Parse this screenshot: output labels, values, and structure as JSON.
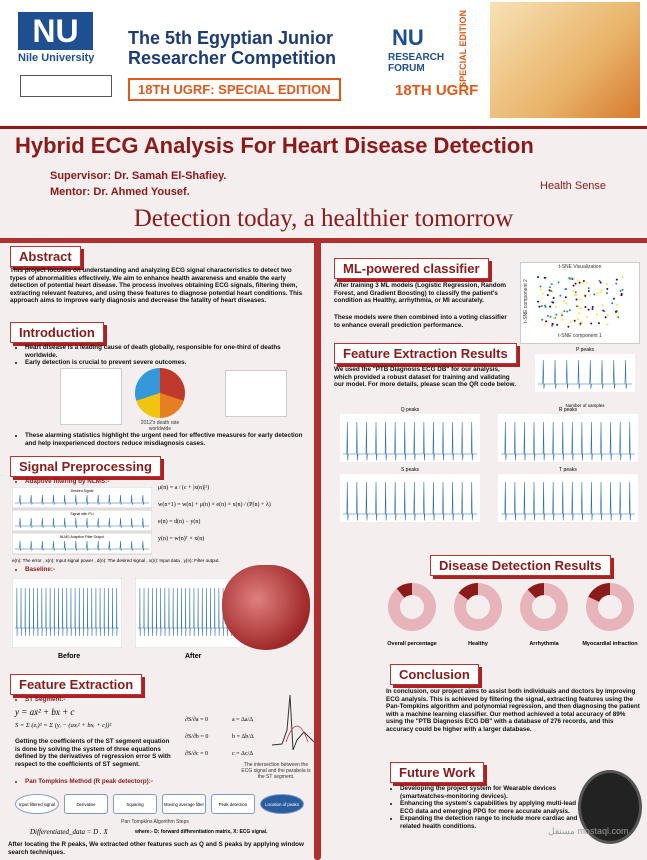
{
  "header": {
    "university": "Nile University",
    "comp_line1": "The 5th Egyptian Junior",
    "comp_line2": "Researcher Competition",
    "edition": "18TH UGRF: SPECIAL EDITION",
    "forum_nu": "NU",
    "forum_name": "RESEARCH FORUM",
    "forum_special": "SPECIAL EDITION",
    "forum_ugrf": "18TH UGRF"
  },
  "title": "Hybrid ECG Analysis For Heart Disease Detection",
  "supervisor": "Supervisor: Dr. Samah El-Shafiey.",
  "mentor": "Mentor: Dr. Ahmed Yousef.",
  "brand": "Health Sense",
  "tagline": "Detection today, a healthier tomorrow",
  "abstract": {
    "heading": "Abstract",
    "text": "This project focuses on understanding and analyzing ECG signal characteristics to detect two types of abnormalities effectively. We aim to enhance health awareness and enable the early detection of potential heart disease. The process involves obtaining ECG signals, filtering them, extracting relevant features, and using these features to diagnose potential heart conditions. This approach aims to improve early diagnosis and decrease the fatality of heart diseases."
  },
  "introduction": {
    "heading": "Introduction",
    "bullets": [
      "Heart disease is a leading cause of death globally, responsible for one-third of deaths worldwide.",
      "Early detection is crucial to prevent severe outcomes."
    ],
    "caption": "2012's death rate worldwide",
    "bullet_after": "These alarming statistics highlight the urgent need for effective measures for early detection and help inexperienced doctors reduce misdiagnosis cases."
  },
  "signal_preprocessing": {
    "heading": "Signal Preprocessing",
    "adaptive": "Adaptive filtering by NLMS:-",
    "plot_titles": [
      "Desired Signal",
      "Signal with PLI",
      "NLMS Adaptive Filter Output"
    ],
    "formulas": [
      "μ(n) = a / (c + |x(n)|²)",
      "w(n+1) = w(n) + μ(n) × e(n) × x(n) / (P(n) + λ)",
      "e(n) = d(n) − y(n)",
      "y(n) = w(n)ᵀ × x(n)"
    ],
    "legend": "e(n): The error , x(n): Input signal power , d(n): The desired signal , x(n): Input data , y(n): Filter output.",
    "baseline": "Baseline:-",
    "before": "Before",
    "after": "After"
  },
  "feature_extraction": {
    "heading": "Feature Extraction",
    "st": "ST Segment:-",
    "eq1": "y = ax² + bx + c",
    "eq2": "S = Σ (eᵢ)² = Σ (yᵢ − (axᵢ² + bxᵢ + c))²",
    "derivs": [
      "∂S/∂a = 0",
      "∂S/∂b = 0",
      "∂S/∂c = 0"
    ],
    "solutions": [
      "a = Δa/Δ",
      "b = Δb/Δ",
      "c = Δc/Δ"
    ],
    "text": "Getting the coefficients of the ST segment equation is done by solving the system of three equations defined by the derivatives of regression error S with respect to the coefficients of ST segment.",
    "caption": "The intersection between the ECG signal and the parabola is the ST segment.",
    "pan": "Pan Tompkins Method (R peak detectorp):-",
    "steps": [
      "Input filtered signal",
      "Derivative",
      "Squaring",
      "Moving average filter",
      "Peak detection",
      "Location of peaks"
    ],
    "steps_caption": "Pan Tompkins Algorithm Steps",
    "diff": "Differentiated_data = D . X",
    "where": "where:- D: forward differentiation matrix, X: ECG signal.",
    "after": "After locating the R peaks, We extracted other features such as Q and S peaks by applying window search techniques."
  },
  "ml": {
    "heading": "ML-powered classifier",
    "text1": "After training 3 ML models (Logistic Regression, Random Forest, and Gradient Boosting) to classify the patient's condition as Healthy, arrhythmia, or MI accurately.",
    "text2": "These models were then combined into a voting classifier to enhance overall prediction performance.",
    "plot_title": "t-SNE Visualization",
    "xlabel": "t-SNE component 1",
    "ylabel": "t-SNE component 2"
  },
  "results": {
    "heading": "Feature Extraction Results",
    "text": "We used the \"PTB Diagnosis ECG DB\" for our analysis, which provided a robust dataset for training and validating our model. For more details, please scan the QR code below.",
    "plots": [
      "P peaks",
      "Q peaks",
      "R peaks",
      "S peaks",
      "T peaks"
    ],
    "xlabel": "Number of samples"
  },
  "disease": {
    "heading": "Disease Detection Results",
    "charts": [
      {
        "name": "Overall percentage",
        "values": [
          89,
          11
        ]
      },
      {
        "name": "Healthy",
        "values": [
          85,
          15
        ]
      },
      {
        "name": "Arrhythmia",
        "values": [
          88,
          12
        ]
      },
      {
        "name": "Myocardial infraction",
        "values": [
          82,
          18
        ]
      }
    ]
  },
  "conclusion": {
    "heading": "Conclusion",
    "text": "In conclusion, our project aims to assist both individuals and doctors by improving ECG analysis. This is achieved by filtering the signal, extracting features using the Pan-Tompkins algorithm and polynomial regression, and then diagnosing the patient with a machine learning classifier. Our method achieved a total accuracy of 89% using the \"PTB Diagnosis ECG DB\" with a database of 276 records, and this accuracy could be higher with a larger database."
  },
  "future": {
    "heading": "Future Work",
    "bullets": [
      "Developing the project system for Wearable devices (smartwatches-monitoring devices).",
      "Enhancing the system's capabilities by applying multi-lead ECG data and emerging PPG for more accurate analysis.",
      "Expanding the detection range to include more cardiac and related health conditions."
    ]
  },
  "watermark": "مستقل mostaql.com"
}
